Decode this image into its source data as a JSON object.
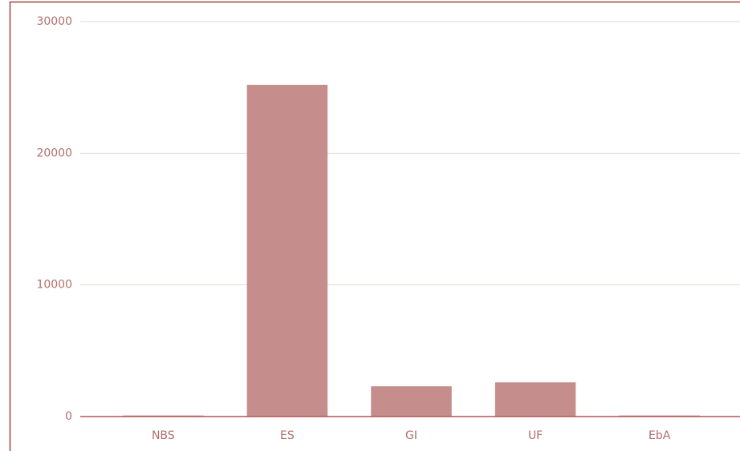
{
  "chart_data": {
    "type": "bar",
    "categories": [
      "NBS",
      "ES",
      "GI",
      "UF",
      "EbA"
    ],
    "values": [
      80,
      25200,
      2300,
      2600,
      80
    ],
    "color": "#c58d8c",
    "ylim": [
      0,
      30000
    ],
    "yticks": [
      0,
      10000,
      20000,
      30000
    ],
    "grid": true
  }
}
